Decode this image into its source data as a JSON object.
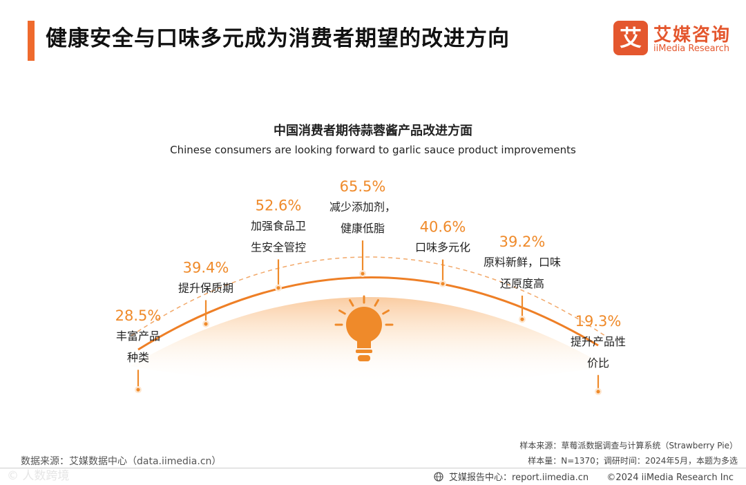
{
  "header": {
    "title": "健康安全与口味多元成为消费者期望的改进方向",
    "logo_mark": "艾",
    "logo_cn": "艾媒咨询",
    "logo_en": "iiMedia Research"
  },
  "chart_data": {
    "type": "bar",
    "title": "中国消费者期待蒜蓉酱产品改进方面",
    "subtitle": "Chinese consumers are looking forward to garlic sauce product improvements",
    "unit": "%",
    "categories": [
      [
        "丰富产品",
        "种类"
      ],
      [
        "提升保质期"
      ],
      [
        "加强食品卫",
        "生安全管控"
      ],
      [
        "减少添加剂，",
        "健康低脂"
      ],
      [
        "口味多元化"
      ],
      [
        "原料新鲜，口味",
        "还原度高"
      ],
      [
        "提升产品性",
        "价比"
      ]
    ],
    "values": [
      28.5,
      39.4,
      52.6,
      65.5,
      40.6,
      39.2,
      19.3
    ],
    "labels": [
      "28.5%",
      "39.4%",
      "52.6%",
      "65.5%",
      "40.6%",
      "39.2%",
      "19.3%"
    ],
    "colors": {
      "accent": "#ef8a2a",
      "text": "#222222"
    }
  },
  "footer": {
    "source": "数据来源：艾媒数据中心（data.iimedia.cn）",
    "sample_source": "样本来源：草莓派数据调查与计算系统（Strawberry Pie）",
    "sample_size": "样本量：N=1370；调研时间：2024年5月，本题为多选",
    "report_center": "艾媒报告中心：report.iimedia.cn",
    "copyright": "©2024  iiMedia Research  Inc",
    "watermark": "© 人数跨境"
  }
}
